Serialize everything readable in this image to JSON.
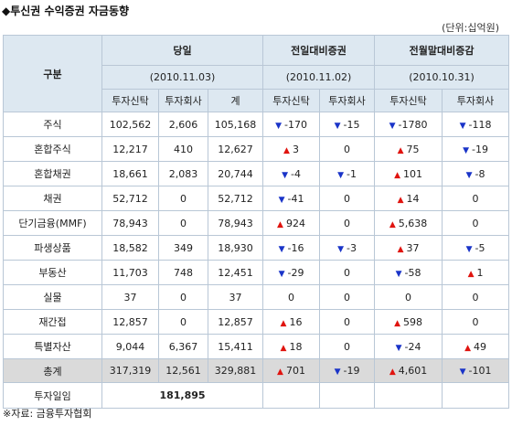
{
  "title": "◆투신권 수익증권 자금동향",
  "unit": "(단위:십억원)",
  "header": {
    "category": "구분",
    "groups": [
      "당일",
      "전일대비증권",
      "전월말대비증감"
    ],
    "dates": [
      "(2010.11.03)",
      "(2010.11.02)",
      "(2010.10.31)"
    ],
    "sub": [
      "투자신탁",
      "투자회사",
      "계",
      "투자신탁",
      "투자회사",
      "투자신탁",
      "투자회사"
    ]
  },
  "rows": [
    {
      "name": "주식",
      "trust": "102,562",
      "company": "2,606",
      "total": "105,168",
      "d_trust": {
        "dir": "down",
        "v": "-170"
      },
      "d_company": {
        "dir": "down",
        "v": "-15"
      },
      "m_trust": {
        "dir": "down",
        "v": "-1780"
      },
      "m_company": {
        "dir": "down",
        "v": "-118"
      }
    },
    {
      "name": "혼합주식",
      "trust": "12,217",
      "company": "410",
      "total": "12,627",
      "d_trust": {
        "dir": "up",
        "v": "3"
      },
      "d_company": {
        "dir": "",
        "v": "0"
      },
      "m_trust": {
        "dir": "up",
        "v": "75"
      },
      "m_company": {
        "dir": "down",
        "v": "-19"
      }
    },
    {
      "name": "혼합채권",
      "trust": "18,661",
      "company": "2,083",
      "total": "20,744",
      "d_trust": {
        "dir": "down",
        "v": "-4"
      },
      "d_company": {
        "dir": "down",
        "v": "-1"
      },
      "m_trust": {
        "dir": "up",
        "v": "101"
      },
      "m_company": {
        "dir": "down",
        "v": "-8"
      }
    },
    {
      "name": "채권",
      "trust": "52,712",
      "company": "0",
      "total": "52,712",
      "d_trust": {
        "dir": "down",
        "v": "-41"
      },
      "d_company": {
        "dir": "",
        "v": "0"
      },
      "m_trust": {
        "dir": "up",
        "v": "14"
      },
      "m_company": {
        "dir": "",
        "v": "0"
      }
    },
    {
      "name": "단기금융(MMF)",
      "trust": "78,943",
      "company": "0",
      "total": "78,943",
      "d_trust": {
        "dir": "up",
        "v": "924"
      },
      "d_company": {
        "dir": "",
        "v": "0"
      },
      "m_trust": {
        "dir": "up",
        "v": "5,638"
      },
      "m_company": {
        "dir": "",
        "v": "0"
      }
    },
    {
      "name": "파생상품",
      "trust": "18,582",
      "company": "349",
      "total": "18,930",
      "d_trust": {
        "dir": "down",
        "v": "-16"
      },
      "d_company": {
        "dir": "down",
        "v": "-3"
      },
      "m_trust": {
        "dir": "up",
        "v": "37"
      },
      "m_company": {
        "dir": "down",
        "v": "-5"
      }
    },
    {
      "name": "부동산",
      "trust": "11,703",
      "company": "748",
      "total": "12,451",
      "d_trust": {
        "dir": "down",
        "v": "-29"
      },
      "d_company": {
        "dir": "",
        "v": "0"
      },
      "m_trust": {
        "dir": "down",
        "v": "-58"
      },
      "m_company": {
        "dir": "up",
        "v": "1"
      }
    },
    {
      "name": "실물",
      "trust": "37",
      "company": "0",
      "total": "37",
      "d_trust": {
        "dir": "",
        "v": "0"
      },
      "d_company": {
        "dir": "",
        "v": "0"
      },
      "m_trust": {
        "dir": "",
        "v": "0"
      },
      "m_company": {
        "dir": "",
        "v": "0"
      }
    },
    {
      "name": "재간접",
      "trust": "12,857",
      "company": "0",
      "total": "12,857",
      "d_trust": {
        "dir": "up",
        "v": "16"
      },
      "d_company": {
        "dir": "",
        "v": "0"
      },
      "m_trust": {
        "dir": "up",
        "v": "598"
      },
      "m_company": {
        "dir": "",
        "v": "0"
      }
    },
    {
      "name": "특별자산",
      "trust": "9,044",
      "company": "6,367",
      "total": "15,411",
      "d_trust": {
        "dir": "up",
        "v": "18"
      },
      "d_company": {
        "dir": "",
        "v": "0"
      },
      "m_trust": {
        "dir": "down",
        "v": "-24"
      },
      "m_company": {
        "dir": "up",
        "v": "49"
      }
    },
    {
      "name": "총계",
      "trust": "317,319",
      "company": "12,561",
      "total": "329,881",
      "d_trust": {
        "dir": "up",
        "v": "701"
      },
      "d_company": {
        "dir": "down",
        "v": "-19"
      },
      "m_trust": {
        "dir": "up",
        "v": "4,601"
      },
      "m_company": {
        "dir": "down",
        "v": "-101"
      }
    }
  ],
  "investment": {
    "label": "투자일임",
    "value": "181,895"
  },
  "source": "※자료: 금융투자협회",
  "colors": {
    "header_bg": "#dde8f1",
    "total_bg": "#dadada",
    "up": "#e0140f",
    "down": "#1a34c8",
    "border": "#b9c7d6"
  }
}
